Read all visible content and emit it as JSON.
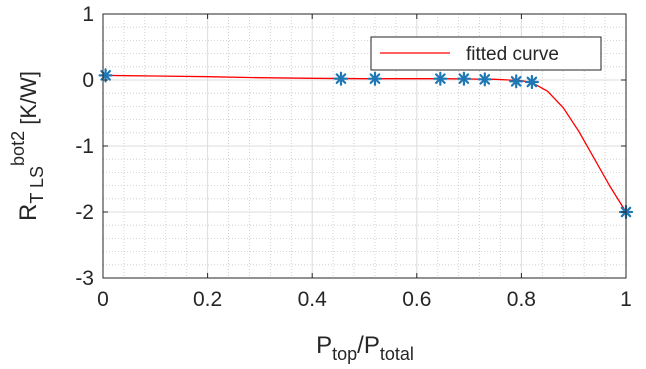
{
  "chart_data": {
    "type": "scatter",
    "title": "",
    "xlabel": {
      "main": "P",
      "sub": "top",
      "slash": "/",
      "main2": "P",
      "sub2": "total"
    },
    "ylabel": {
      "main": "R",
      "sub": "T LS",
      "sup": "bot2",
      "unit": " [K/W]"
    },
    "xlim": [
      0,
      1
    ],
    "ylim": [
      -3,
      1
    ],
    "xticks": [
      0,
      0.2,
      0.4,
      0.6,
      0.8,
      1
    ],
    "xtick_labels": [
      "0",
      "0.2",
      "0.4",
      "0.6",
      "0.8",
      "1"
    ],
    "yticks": [
      -3,
      -2,
      -1,
      0,
      1
    ],
    "ytick_labels": [
      "-3",
      "-2",
      "-1",
      "0",
      "1"
    ],
    "grid": true,
    "minor_grid": true,
    "legend_position": "top-right",
    "series": [
      {
        "kind": "points",
        "marker": "asterisk",
        "color": "#1f77b4",
        "x": [
          0.005,
          0.455,
          0.52,
          0.645,
          0.69,
          0.73,
          0.79,
          0.82,
          1.0
        ],
        "y": [
          0.07,
          0.02,
          0.02,
          0.02,
          0.02,
          0.01,
          -0.02,
          -0.03,
          -2.0
        ]
      },
      {
        "name": "fitted curve",
        "kind": "line",
        "color": "#ff0000",
        "x": [
          0.0,
          0.1,
          0.2,
          0.3,
          0.4,
          0.5,
          0.6,
          0.65,
          0.7,
          0.75,
          0.8,
          0.82,
          0.85,
          0.88,
          0.91,
          0.94,
          0.97,
          1.0
        ],
        "y": [
          0.07,
          0.06,
          0.05,
          0.035,
          0.025,
          0.02,
          0.02,
          0.02,
          0.015,
          0.01,
          -0.01,
          -0.04,
          -0.17,
          -0.42,
          -0.78,
          -1.2,
          -1.62,
          -2.0
        ]
      }
    ]
  }
}
